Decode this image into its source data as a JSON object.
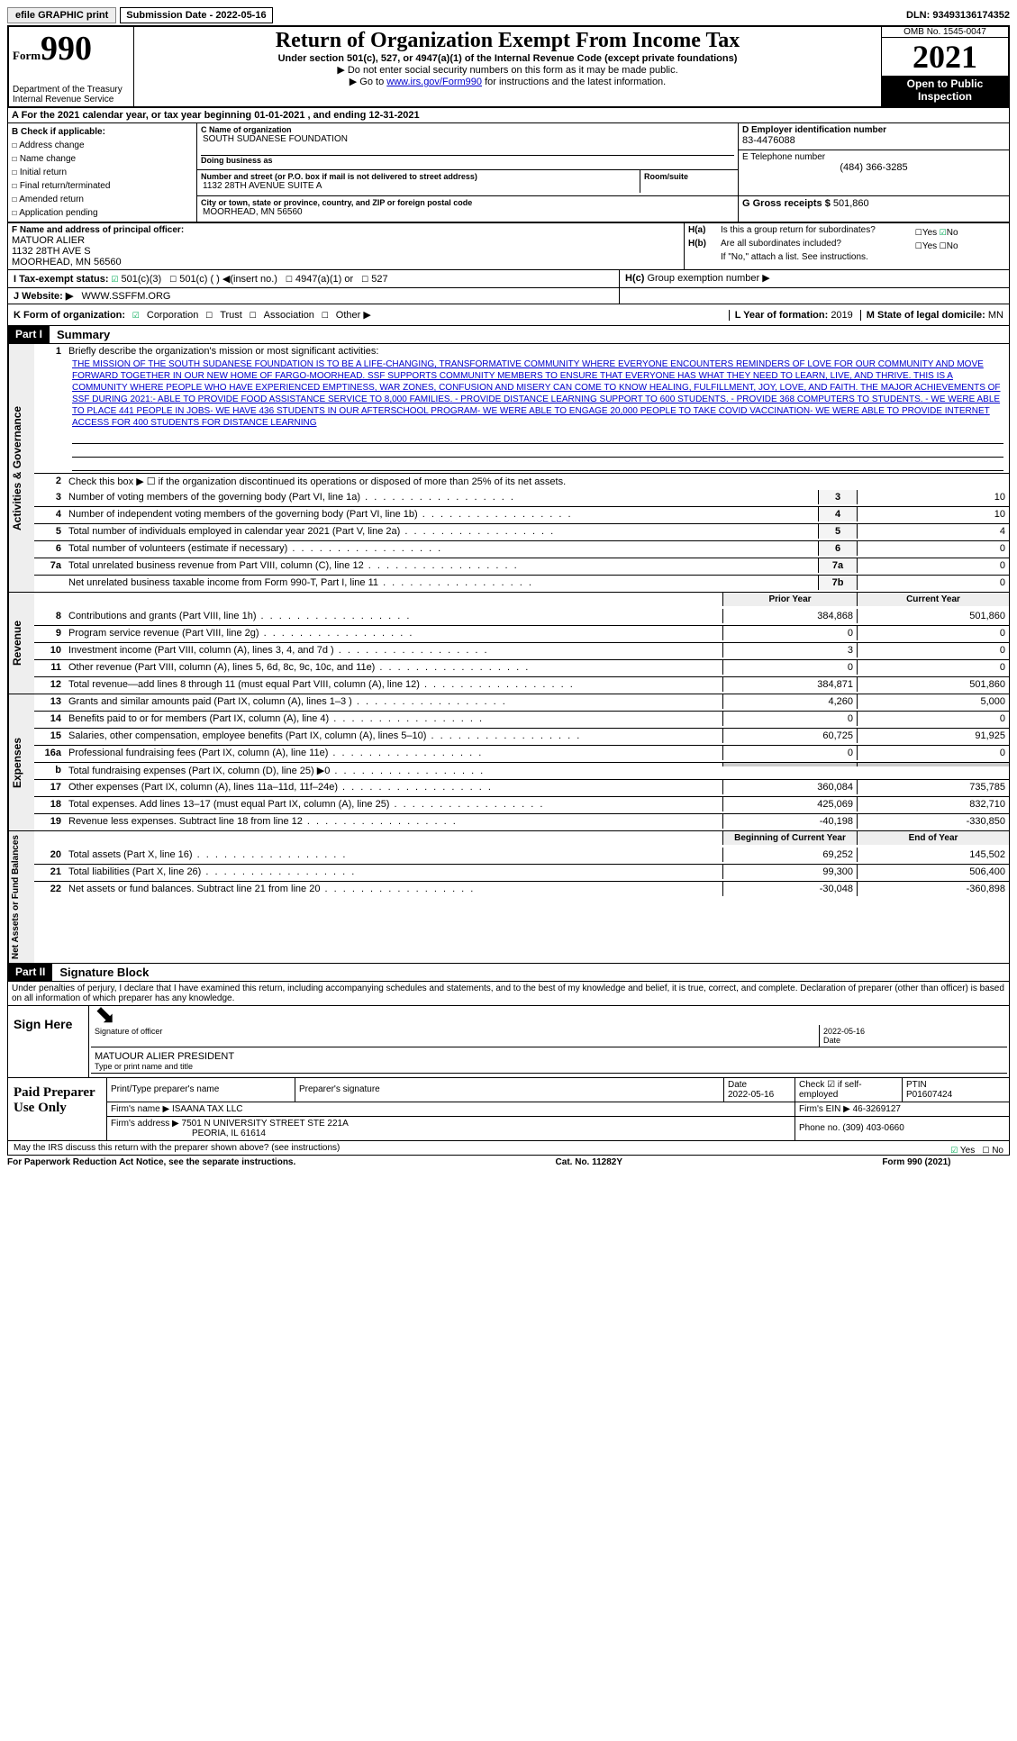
{
  "top": {
    "efile": "efile GRAPHIC print",
    "submission_label": "Submission Date - 2022-05-16",
    "dln": "DLN: 93493136174352"
  },
  "header": {
    "form_prefix": "Form",
    "form_number": "990",
    "dept": "Department of the Treasury",
    "irs": "Internal Revenue Service",
    "title": "Return of Organization Exempt From Income Tax",
    "subtitle": "Under section 501(c), 527, or 4947(a)(1) of the Internal Revenue Code (except private foundations)",
    "note1": "▶ Do not enter social security numbers on this form as it may be made public.",
    "note2_pre": "▶ Go to ",
    "note2_link": "www.irs.gov/Form990",
    "note2_post": " for instructions and the latest information.",
    "omb": "OMB No. 1545-0047",
    "year": "2021",
    "open": "Open to Public Inspection"
  },
  "sectionA": "A For the 2021 calendar year, or tax year beginning 01-01-2021   , and ending 12-31-2021",
  "boxB": {
    "label": "B Check if applicable:",
    "items": [
      "Address change",
      "Name change",
      "Initial return",
      "Final return/terminated",
      "Amended return",
      "Application pending"
    ]
  },
  "boxC": {
    "label": "C Name of organization",
    "name": "SOUTH SUDANESE FOUNDATION",
    "dba_label": "Doing business as",
    "street_label": "Number and street (or P.O. box if mail is not delivered to street address)",
    "street": "1132 28TH AVENUE SUITE A",
    "room_label": "Room/suite",
    "city_label": "City or town, state or province, country, and ZIP or foreign postal code",
    "city": "MOORHEAD, MN  56560"
  },
  "boxD": {
    "label": "D Employer identification number",
    "ein": "83-4476088"
  },
  "boxE": {
    "label": "E Telephone number",
    "phone": "(484) 366-3285"
  },
  "boxG": {
    "label": "G Gross receipts $",
    "value": "501,860"
  },
  "boxF": {
    "label": "F Name and address of principal officer:",
    "name": "MATUOR ALIER",
    "addr1": "1132 28TH AVE S",
    "addr2": "MOORHEAD, MN  56560"
  },
  "boxH": {
    "a_label": "Is this a group return for subordinates?",
    "a_no": "No",
    "b_label": "Are all subordinates included?",
    "b_note": "If \"No,\" attach a list. See instructions.",
    "c_label": "Group exemption number ▶"
  },
  "boxI": {
    "label": "I   Tax-exempt status:",
    "c3": "501(c)(3)",
    "c_other": "501(c) (  ) ◀(insert no.)",
    "a1": "4947(a)(1) or",
    "s527": "527"
  },
  "boxJ": {
    "label": "J  Website: ▶",
    "value": "WWW.SSFFM.ORG"
  },
  "boxK": {
    "label": "K Form of organization:",
    "corp": "Corporation",
    "trust": "Trust",
    "assoc": "Association",
    "other": "Other ▶"
  },
  "boxL": {
    "label": "L Year of formation:",
    "value": "2019"
  },
  "boxM": {
    "label": "M State of legal domicile:",
    "value": "MN"
  },
  "part1": {
    "tag": "Part I",
    "title": "Summary",
    "side_ag": "Activities & Governance",
    "side_rev": "Revenue",
    "side_exp": "Expenses",
    "side_na": "Net Assets or Fund Balances",
    "line1_label": "Briefly describe the organization's mission or most significant activities:",
    "mission": "THE MISSION OF THE SOUTH SUDANESE FOUNDATION IS TO BE A LIFE-CHANGING, TRANSFORMATIVE COMMUNITY WHERE EVERYONE ENCOUNTERS REMINDERS OF LOVE FOR OUR COMMUNITY AND MOVE FORWARD TOGETHER IN OUR NEW HOME OF FARGO-MOORHEAD. SSF SUPPORTS COMMUNITY MEMBERS TO ENSURE THAT EVERYONE HAS WHAT THEY NEED TO LEARN, LIVE, AND THRIVE. THIS IS A COMMUNITY WHERE PEOPLE WHO HAVE EXPERIENCED EMPTINESS, WAR ZONES, CONFUSION AND MISERY CAN COME TO KNOW HEALING, FULFILLMENT, JOY, LOVE, AND FAITH. THE MAJOR ACHIEVEMENTS OF SSF DURING 2021:- ABLE TO PROVIDE FOOD ASSISTANCE SERVICE TO 8,000 FAMILIES. - PROVIDE DISTANCE LEARNING SUPPORT TO 600 STUDENTS. - PROVIDE 368 COMPUTERS TO STUDENTS. - WE WERE ABLE TO PLACE 441 PEOPLE IN JOBS- WE HAVE 436 STUDENTS IN OUR AFTERSCHOOL PROGRAM- WE WERE ABLE TO ENGAGE 20,000 PEOPLE TO TAKE COVID VACCINATION- WE WERE ABLE TO PROVIDE INTERNET ACCESS FOR 400 STUDENTS FOR DISTANCE LEARNING",
    "line2": "Check this box ▶ ☐ if the organization discontinued its operations or disposed of more than 25% of its net assets.",
    "lines_ag": [
      {
        "n": "3",
        "d": "Number of voting members of the governing body (Part VI, line 1a)",
        "c": "3",
        "v": "10"
      },
      {
        "n": "4",
        "d": "Number of independent voting members of the governing body (Part VI, line 1b)",
        "c": "4",
        "v": "10"
      },
      {
        "n": "5",
        "d": "Total number of individuals employed in calendar year 2021 (Part V, line 2a)",
        "c": "5",
        "v": "4"
      },
      {
        "n": "6",
        "d": "Total number of volunteers (estimate if necessary)",
        "c": "6",
        "v": "0"
      },
      {
        "n": "7a",
        "d": "Total unrelated business revenue from Part VIII, column (C), line 12",
        "c": "7a",
        "v": "0"
      },
      {
        "n": "",
        "d": "Net unrelated business taxable income from Form 990-T, Part I, line 11",
        "c": "7b",
        "v": "0"
      }
    ],
    "hdr_prior": "Prior Year",
    "hdr_curr": "Current Year",
    "hdr_boy": "Beginning of Current Year",
    "hdr_eoy": "End of Year",
    "lines_rev": [
      {
        "n": "8",
        "d": "Contributions and grants (Part VIII, line 1h)",
        "p": "384,868",
        "c": "501,860"
      },
      {
        "n": "9",
        "d": "Program service revenue (Part VIII, line 2g)",
        "p": "0",
        "c": "0"
      },
      {
        "n": "10",
        "d": "Investment income (Part VIII, column (A), lines 3, 4, and 7d )",
        "p": "3",
        "c": "0"
      },
      {
        "n": "11",
        "d": "Other revenue (Part VIII, column (A), lines 5, 6d, 8c, 9c, 10c, and 11e)",
        "p": "0",
        "c": "0"
      },
      {
        "n": "12",
        "d": "Total revenue—add lines 8 through 11 (must equal Part VIII, column (A), line 12)",
        "p": "384,871",
        "c": "501,860"
      }
    ],
    "lines_exp": [
      {
        "n": "13",
        "d": "Grants and similar amounts paid (Part IX, column (A), lines 1–3 )",
        "p": "4,260",
        "c": "5,000"
      },
      {
        "n": "14",
        "d": "Benefits paid to or for members (Part IX, column (A), line 4)",
        "p": "0",
        "c": "0"
      },
      {
        "n": "15",
        "d": "Salaries, other compensation, employee benefits (Part IX, column (A), lines 5–10)",
        "p": "60,725",
        "c": "91,925"
      },
      {
        "n": "16a",
        "d": "Professional fundraising fees (Part IX, column (A), line 11e)",
        "p": "0",
        "c": "0"
      },
      {
        "n": "b",
        "d": "Total fundraising expenses (Part IX, column (D), line 25) ▶0",
        "p": "",
        "c": "",
        "grey": true
      },
      {
        "n": "17",
        "d": "Other expenses (Part IX, column (A), lines 11a–11d, 11f–24e)",
        "p": "360,084",
        "c": "735,785"
      },
      {
        "n": "18",
        "d": "Total expenses. Add lines 13–17 (must equal Part IX, column (A), line 25)",
        "p": "425,069",
        "c": "832,710"
      },
      {
        "n": "19",
        "d": "Revenue less expenses. Subtract line 18 from line 12",
        "p": "-40,198",
        "c": "-330,850"
      }
    ],
    "lines_na": [
      {
        "n": "20",
        "d": "Total assets (Part X, line 16)",
        "p": "69,252",
        "c": "145,502"
      },
      {
        "n": "21",
        "d": "Total liabilities (Part X, line 26)",
        "p": "99,300",
        "c": "506,400"
      },
      {
        "n": "22",
        "d": "Net assets or fund balances. Subtract line 21 from line 20",
        "p": "-30,048",
        "c": "-360,898"
      }
    ]
  },
  "part2": {
    "tag": "Part II",
    "title": "Signature Block",
    "perjury": "Under penalties of perjury, I declare that I have examined this return, including accompanying schedules and statements, and to the best of my knowledge and belief, it is true, correct, and complete. Declaration of preparer (other than officer) is based on all information of which preparer has any knowledge.",
    "sign_here": "Sign Here",
    "sig_officer": "Signature of officer",
    "sig_date": "2022-05-16",
    "date_label": "Date",
    "officer_name": "MATUOUR ALIER  PRESIDENT",
    "type_label": "Type or print name and title",
    "paid_prep": "Paid Preparer Use Only",
    "prep_name_label": "Print/Type preparer's name",
    "prep_sig_label": "Preparer's signature",
    "prep_date_label": "Date",
    "prep_date": "2022-05-16",
    "self_emp": "Check ☑ if self-employed",
    "ptin_label": "PTIN",
    "ptin": "P01607424",
    "firm_name_label": "Firm's name    ▶",
    "firm_name": "ISAANA TAX LLC",
    "firm_ein_label": "Firm's EIN ▶",
    "firm_ein": "46-3269127",
    "firm_addr_label": "Firm's address ▶",
    "firm_addr": "7501 N UNIVERSITY STREET STE 221A",
    "firm_city": "PEORIA, IL  61614",
    "firm_phone_label": "Phone no.",
    "firm_phone": "(309) 403-0660",
    "discuss": "May the IRS discuss this return with the preparer shown above? (see instructions)",
    "yes": "Yes",
    "no": "No"
  },
  "footer": {
    "pra": "For Paperwork Reduction Act Notice, see the separate instructions.",
    "cat": "Cat. No. 11282Y",
    "form": "Form 990 (2021)"
  }
}
